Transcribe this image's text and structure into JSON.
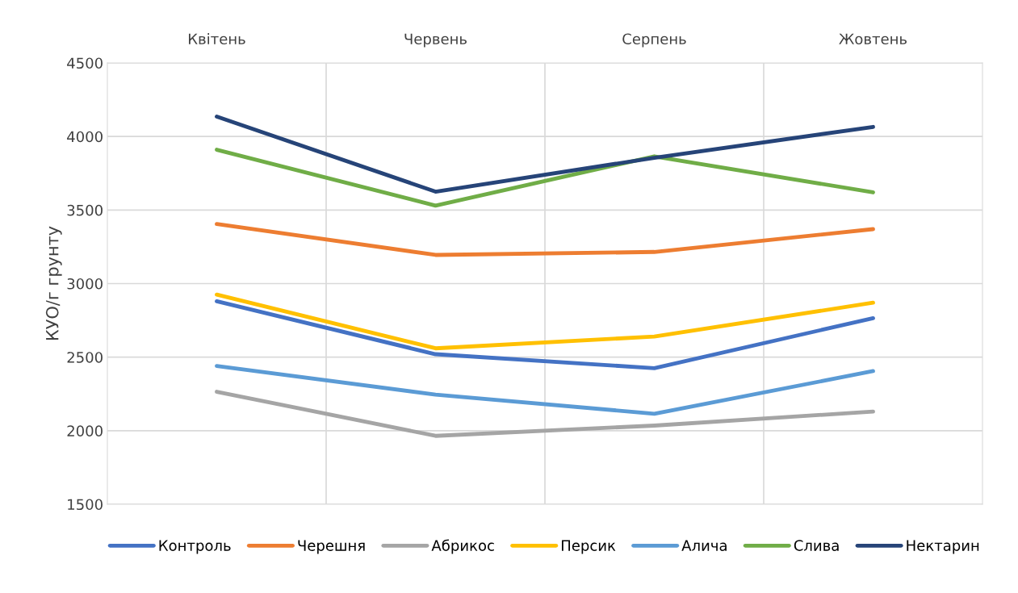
{
  "chart_data": {
    "type": "line",
    "ylabel": "КУО/г грунту",
    "categories": [
      "Квітень",
      "Червень",
      "Серпень",
      "Жовтень"
    ],
    "series": [
      {
        "name": "Контроль",
        "color": "#4472c4",
        "values": [
          2880,
          2520,
          2425,
          2765
        ]
      },
      {
        "name": "Черешня",
        "color": "#ed7d31",
        "values": [
          3405,
          3195,
          3215,
          3370
        ]
      },
      {
        "name": "Абрикос",
        "color": "#a5a5a5",
        "values": [
          2265,
          1965,
          2035,
          2130
        ]
      },
      {
        "name": "Персик",
        "color": "#ffc000",
        "values": [
          2925,
          2560,
          2640,
          2870
        ]
      },
      {
        "name": "Алича",
        "color": "#5b9bd5",
        "values": [
          2440,
          2245,
          2115,
          2405
        ]
      },
      {
        "name": "Слива",
        "color": "#70ad47",
        "values": [
          3910,
          3530,
          3865,
          3620
        ]
      },
      {
        "name": "Нектарин",
        "color": "#264478",
        "values": [
          4135,
          3625,
          3855,
          4065
        ]
      }
    ],
    "ylim": [
      1500,
      4500
    ],
    "yticks": [
      1500,
      2000,
      2500,
      3000,
      3500,
      4000,
      4500
    ],
    "grid": true,
    "legend": "bottom",
    "marker": "none",
    "line_style": "solid"
  }
}
